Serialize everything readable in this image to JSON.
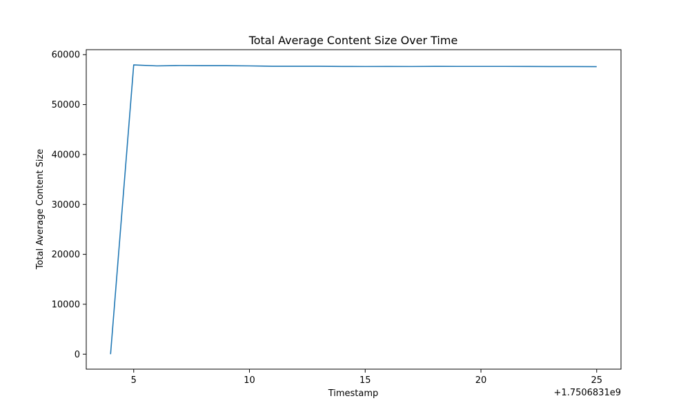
{
  "chart_data": {
    "type": "line",
    "title": "Total Average Content Size Over Time",
    "xlabel": "Timestamp",
    "ylabel": "Total Average Content Size",
    "x_offset_label": "+1.7506831e9",
    "xlim": [
      2.95,
      26.05
    ],
    "ylim": [
      -3000,
      61000
    ],
    "xticks": [
      5,
      10,
      15,
      20,
      25
    ],
    "yticks": [
      0,
      10000,
      20000,
      30000,
      40000,
      50000,
      60000
    ],
    "grid": false,
    "series": [
      {
        "color": "#1f77b4",
        "x": [
          4,
          5,
          6,
          7,
          8,
          9,
          10,
          11,
          12,
          13,
          14,
          15,
          16,
          17,
          18,
          19,
          20,
          21,
          22,
          23,
          24,
          25
        ],
        "y": [
          0,
          57950,
          57750,
          57820,
          57800,
          57790,
          57750,
          57680,
          57680,
          57670,
          57640,
          57630,
          57640,
          57630,
          57660,
          57650,
          57650,
          57650,
          57640,
          57620,
          57620,
          57610
        ]
      }
    ]
  }
}
